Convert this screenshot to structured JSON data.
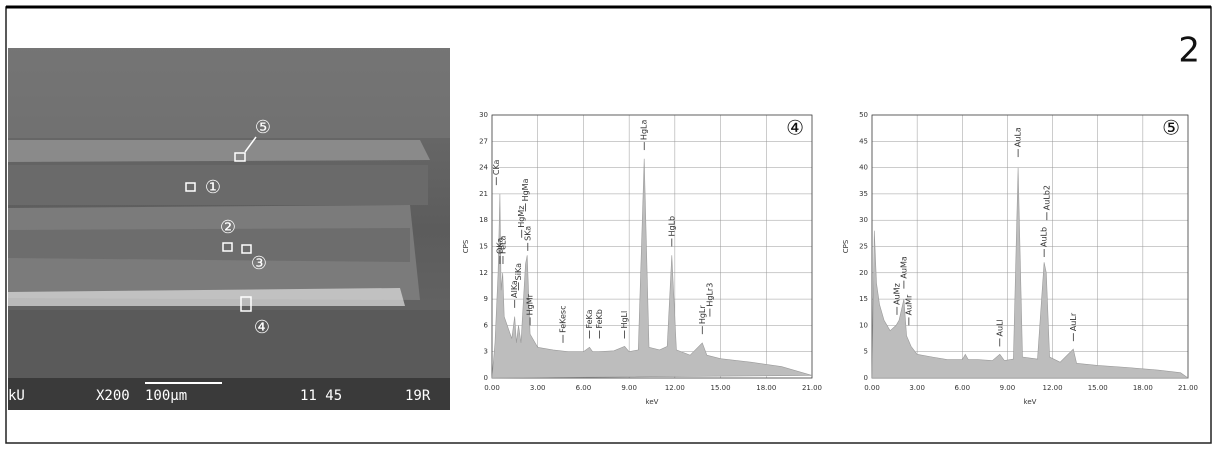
{
  "figure_number": "2",
  "sem_image": {
    "markers": [
      "⑤",
      "①",
      "②",
      "③",
      "④"
    ],
    "info": [
      "kU",
      "X200",
      "100μm",
      "11 45",
      "19R"
    ]
  },
  "chart_data": [
    {
      "type": "area",
      "panel_label": "④",
      "x_label": "keV",
      "y_label": "CPS",
      "color": "#bdbdbd",
      "grid": true,
      "x": [
        0,
        0.2,
        0.4,
        0.52,
        0.6,
        0.7,
        0.8,
        1.0,
        1.3,
        1.49,
        1.6,
        1.74,
        1.9,
        2.2,
        2.31,
        2.5,
        3.0,
        4.0,
        5.0,
        6.0,
        6.4,
        6.6,
        7.0,
        8.0,
        8.7,
        9.0,
        9.6,
        9.99,
        10.3,
        11.0,
        11.5,
        11.8,
        12.1,
        13.0,
        13.8,
        14.1,
        15,
        17,
        19,
        21
      ],
      "values": [
        0,
        4,
        12,
        21,
        10,
        12,
        7,
        6,
        4.5,
        7,
        4,
        6,
        4,
        13,
        14,
        5,
        3.5,
        3.2,
        3.0,
        3.0,
        3.5,
        3.0,
        3.0,
        3.1,
        3.6,
        3.0,
        3.2,
        25,
        3.5,
        3.2,
        3.6,
        14,
        3.2,
        2.6,
        4,
        2.6,
        2.2,
        1.8,
        1.3,
        0.3
      ],
      "xlim": [
        0,
        21
      ],
      "xticks": [
        {
          "value": 0,
          "label": "0.00"
        },
        {
          "value": 3,
          "label": "3.00"
        },
        {
          "value": 6,
          "label": "6.00"
        },
        {
          "value": 9,
          "label": "9.00"
        },
        {
          "value": 12,
          "label": "12.00"
        },
        {
          "value": 15,
          "label": "15.00"
        },
        {
          "value": 18,
          "label": "18.00"
        },
        {
          "value": 21,
          "label": "21.00"
        }
      ],
      "ylim": [
        0,
        30
      ],
      "yticks": [
        0,
        3,
        6,
        9,
        12,
        15,
        18,
        21,
        24,
        27,
        30
      ],
      "annotations": [
        {
          "label": "CKa",
          "x": 0.28,
          "y": 22
        },
        {
          "label": "OKa",
          "x": 0.52,
          "y": 13
        },
        {
          "label": "FeLa",
          "x": 0.72,
          "y": 13
        },
        {
          "label": "AlKa",
          "x": 1.49,
          "y": 8
        },
        {
          "label": "SiKa",
          "x": 1.74,
          "y": 10
        },
        {
          "label": "HgMz",
          "x": 1.95,
          "y": 16
        },
        {
          "label": "HgMa",
          "x": 2.2,
          "y": 19
        },
        {
          "label": "SKa",
          "x": 2.35,
          "y": 14.5
        },
        {
          "label": "HgMr",
          "x": 2.5,
          "y": 6
        },
        {
          "label": "FeKesc",
          "x": 4.66,
          "y": 4
        },
        {
          "label": "FeKa",
          "x": 6.4,
          "y": 4.5
        },
        {
          "label": "FeKb",
          "x": 7.06,
          "y": 4.5
        },
        {
          "label": "HgLl",
          "x": 8.7,
          "y": 4.5
        },
        {
          "label": "HgLa",
          "x": 9.99,
          "y": 26
        },
        {
          "label": "HgLb",
          "x": 11.8,
          "y": 15
        },
        {
          "label": "HgLr",
          "x": 13.8,
          "y": 5
        },
        {
          "label": "HgLr3",
          "x": 14.3,
          "y": 7
        }
      ]
    },
    {
      "type": "area",
      "panel_label": "⑤",
      "x_label": "keV",
      "y_label": "CPS",
      "color": "#bdbdbd",
      "grid": true,
      "x": [
        0,
        0.15,
        0.3,
        0.5,
        0.8,
        1.2,
        1.6,
        1.8,
        2.12,
        2.3,
        2.6,
        3,
        4,
        5,
        6,
        6.2,
        6.4,
        7,
        8,
        8.49,
        8.8,
        9.4,
        9.71,
        10,
        11,
        11.44,
        11.58,
        11.8,
        12.5,
        13.38,
        13.6,
        15,
        17,
        19,
        20.5,
        21
      ],
      "values": [
        0,
        28,
        18,
        14,
        11,
        9,
        10,
        11,
        15,
        8,
        6,
        4.5,
        4,
        3.5,
        3.5,
        4.5,
        3.5,
        3.5,
        3.3,
        4.5,
        3.3,
        3.6,
        40,
        4,
        3.6,
        22,
        20,
        4,
        3,
        5.5,
        2.8,
        2.4,
        2,
        1.5,
        1,
        0
      ],
      "xlim": [
        0,
        21
      ],
      "xticks": [
        {
          "value": 0,
          "label": "0.00"
        },
        {
          "value": 3,
          "label": "3.00"
        },
        {
          "value": 6,
          "label": "6.00"
        },
        {
          "value": 9,
          "label": "9.00"
        },
        {
          "value": 12,
          "label": "12.00"
        },
        {
          "value": 15,
          "label": "15.00"
        },
        {
          "value": 18,
          "label": "18.00"
        },
        {
          "value": 21,
          "label": "21.00"
        }
      ],
      "ylim": [
        0,
        50
      ],
      "yticks": [
        0,
        5,
        10,
        15,
        20,
        25,
        30,
        35,
        40,
        45,
        50
      ],
      "annotations": [
        {
          "label": "AuMz",
          "x": 1.66,
          "y": 12
        },
        {
          "label": "AuMa",
          "x": 2.12,
          "y": 17
        },
        {
          "label": "AuMr",
          "x": 2.45,
          "y": 10
        },
        {
          "label": "AuLl",
          "x": 8.49,
          "y": 6
        },
        {
          "label": "AuLa",
          "x": 9.71,
          "y": 42
        },
        {
          "label": "AuLb",
          "x": 11.44,
          "y": 23
        },
        {
          "label": "AuLb2",
          "x": 11.62,
          "y": 30
        },
        {
          "label": "AuLr",
          "x": 13.38,
          "y": 7
        }
      ]
    }
  ]
}
